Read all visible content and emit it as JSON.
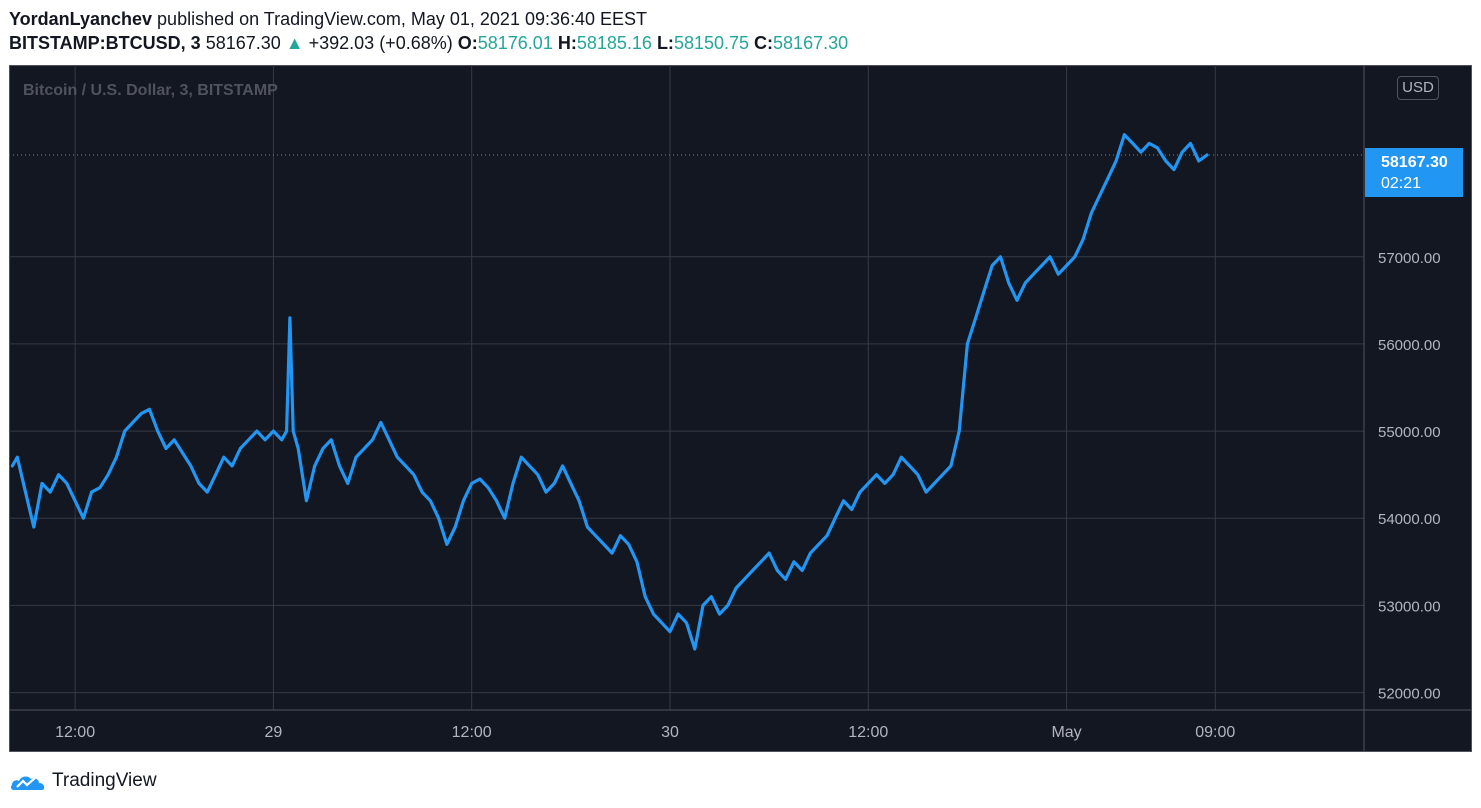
{
  "header": {
    "author": "YordanLyanchev",
    "published_text": " published on TradingView.com, May 01, 2021 09:36:40 EEST"
  },
  "quote": {
    "symbol": "BITSTAMP:BTCUSD, 3",
    "last": "58167.30",
    "arrow": "▲",
    "change": "+392.03 (+0.68%)",
    "open_label": "O:",
    "open": "58176.01",
    "high_label": "H:",
    "high": "58185.16",
    "low_label": "L:",
    "low": "58150.75",
    "close_label": "C:",
    "close": "58167.30"
  },
  "currency_badge": "USD",
  "price_tag": {
    "price": "58167.30",
    "countdown": "02:21"
  },
  "footer": {
    "brand": "TradingView"
  },
  "colors": {
    "background": "#131722",
    "grid": "#363a45",
    "line": "#2196f3",
    "axis_text": "#b2b5be",
    "up": "#26a69a"
  },
  "chart_data": {
    "type": "line",
    "title": "Bitcoin / U.S. Dollar, 3, BITSTAMP",
    "y_ticks": [
      52000,
      53000,
      54000,
      55000,
      56000,
      57000
    ],
    "y_tick_labels": [
      "52000.00",
      "53000.00",
      "54000.00",
      "55000.00",
      "56000.00",
      "57000.00"
    ],
    "ylim": [
      51800,
      59200
    ],
    "x_ticks": [
      {
        "label": "12:00",
        "t": 12
      },
      {
        "label": "29",
        "t": 24
      },
      {
        "label": "12:00",
        "t": 36
      },
      {
        "label": "30",
        "t": 48
      },
      {
        "label": "12:00",
        "t": 60
      },
      {
        "label": "May",
        "t": 72
      },
      {
        "label": "09:00",
        "t": 81
      }
    ],
    "xlim": [
      8.0,
      90.0
    ],
    "last_price": 58167.3,
    "grid": true,
    "series": [
      {
        "values": [
          [
            8.2,
            54600
          ],
          [
            8.5,
            54700
          ],
          [
            9.0,
            54300
          ],
          [
            9.5,
            53900
          ],
          [
            10.0,
            54400
          ],
          [
            10.5,
            54300
          ],
          [
            11.0,
            54500
          ],
          [
            11.5,
            54400
          ],
          [
            12.0,
            54200
          ],
          [
            12.5,
            54000
          ],
          [
            13.0,
            54300
          ],
          [
            13.5,
            54350
          ],
          [
            14.0,
            54500
          ],
          [
            14.5,
            54700
          ],
          [
            15.0,
            55000
          ],
          [
            15.5,
            55100
          ],
          [
            16.0,
            55200
          ],
          [
            16.5,
            55250
          ],
          [
            17.0,
            55000
          ],
          [
            17.5,
            54800
          ],
          [
            18.0,
            54900
          ],
          [
            18.5,
            54750
          ],
          [
            19.0,
            54600
          ],
          [
            19.5,
            54400
          ],
          [
            20.0,
            54300
          ],
          [
            20.5,
            54500
          ],
          [
            21.0,
            54700
          ],
          [
            21.5,
            54600
          ],
          [
            22.0,
            54800
          ],
          [
            22.5,
            54900
          ],
          [
            23.0,
            55000
          ],
          [
            23.5,
            54900
          ],
          [
            24.0,
            55000
          ],
          [
            24.5,
            54900
          ],
          [
            24.8,
            55000
          ],
          [
            25.0,
            56300
          ],
          [
            25.2,
            55000
          ],
          [
            25.5,
            54800
          ],
          [
            26.0,
            54200
          ],
          [
            26.5,
            54600
          ],
          [
            27.0,
            54800
          ],
          [
            27.5,
            54900
          ],
          [
            28.0,
            54600
          ],
          [
            28.5,
            54400
          ],
          [
            29.0,
            54700
          ],
          [
            29.5,
            54800
          ],
          [
            30.0,
            54900
          ],
          [
            30.5,
            55100
          ],
          [
            31.0,
            54900
          ],
          [
            31.5,
            54700
          ],
          [
            32.0,
            54600
          ],
          [
            32.5,
            54500
          ],
          [
            33.0,
            54300
          ],
          [
            33.5,
            54200
          ],
          [
            34.0,
            54000
          ],
          [
            34.5,
            53700
          ],
          [
            35.0,
            53900
          ],
          [
            35.5,
            54200
          ],
          [
            36.0,
            54400
          ],
          [
            36.5,
            54450
          ],
          [
            37.0,
            54350
          ],
          [
            37.5,
            54200
          ],
          [
            38.0,
            54000
          ],
          [
            38.5,
            54400
          ],
          [
            39.0,
            54700
          ],
          [
            39.5,
            54600
          ],
          [
            40.0,
            54500
          ],
          [
            40.5,
            54300
          ],
          [
            41.0,
            54400
          ],
          [
            41.5,
            54600
          ],
          [
            42.0,
            54400
          ],
          [
            42.5,
            54200
          ],
          [
            43.0,
            53900
          ],
          [
            43.5,
            53800
          ],
          [
            44.0,
            53700
          ],
          [
            44.5,
            53600
          ],
          [
            45.0,
            53800
          ],
          [
            45.5,
            53700
          ],
          [
            46.0,
            53500
          ],
          [
            46.5,
            53100
          ],
          [
            47.0,
            52900
          ],
          [
            47.5,
            52800
          ],
          [
            48.0,
            52700
          ],
          [
            48.5,
            52900
          ],
          [
            49.0,
            52800
          ],
          [
            49.5,
            52500
          ],
          [
            50.0,
            53000
          ],
          [
            50.5,
            53100
          ],
          [
            51.0,
            52900
          ],
          [
            51.5,
            53000
          ],
          [
            52.0,
            53200
          ],
          [
            52.5,
            53300
          ],
          [
            53.0,
            53400
          ],
          [
            53.5,
            53500
          ],
          [
            54.0,
            53600
          ],
          [
            54.5,
            53400
          ],
          [
            55.0,
            53300
          ],
          [
            55.5,
            53500
          ],
          [
            56.0,
            53400
          ],
          [
            56.5,
            53600
          ],
          [
            57.0,
            53700
          ],
          [
            57.5,
            53800
          ],
          [
            58.0,
            54000
          ],
          [
            58.5,
            54200
          ],
          [
            59.0,
            54100
          ],
          [
            59.5,
            54300
          ],
          [
            60.0,
            54400
          ],
          [
            60.5,
            54500
          ],
          [
            61.0,
            54400
          ],
          [
            61.5,
            54500
          ],
          [
            62.0,
            54700
          ],
          [
            62.5,
            54600
          ],
          [
            63.0,
            54500
          ],
          [
            63.5,
            54300
          ],
          [
            64.0,
            54400
          ],
          [
            64.5,
            54500
          ],
          [
            65.0,
            54600
          ],
          [
            65.5,
            55000
          ],
          [
            66.0,
            56000
          ],
          [
            66.5,
            56300
          ],
          [
            67.0,
            56600
          ],
          [
            67.5,
            56900
          ],
          [
            68.0,
            57000
          ],
          [
            68.5,
            56700
          ],
          [
            69.0,
            56500
          ],
          [
            69.5,
            56700
          ],
          [
            70.0,
            56800
          ],
          [
            70.5,
            56900
          ],
          [
            71.0,
            57000
          ],
          [
            71.5,
            56800
          ],
          [
            72.0,
            56900
          ],
          [
            72.5,
            57000
          ],
          [
            73.0,
            57200
          ],
          [
            73.5,
            57500
          ],
          [
            74.0,
            57700
          ],
          [
            74.5,
            57900
          ],
          [
            75.0,
            58100
          ],
          [
            75.5,
            58400
          ],
          [
            76.0,
            58300
          ],
          [
            76.5,
            58200
          ],
          [
            77.0,
            58300
          ],
          [
            77.5,
            58250
          ],
          [
            78.0,
            58100
          ],
          [
            78.5,
            58000
          ],
          [
            79.0,
            58200
          ],
          [
            79.5,
            58300
          ],
          [
            80.0,
            58100
          ],
          [
            80.5,
            58167
          ]
        ]
      }
    ]
  }
}
